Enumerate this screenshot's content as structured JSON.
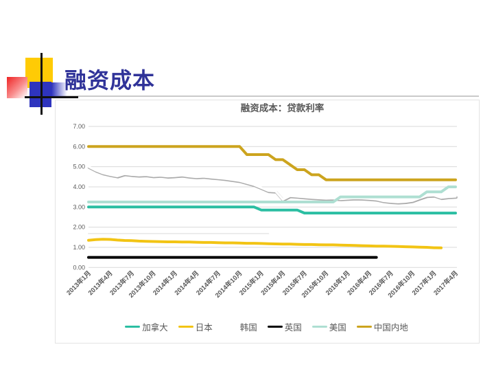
{
  "slide": {
    "title": "融资成本",
    "title_color": "#303399",
    "decoration": {
      "yellow_square": "#ffcb05",
      "blue_square": "#2e34be",
      "red_square_gradient": [
        "#ee2424",
        "#ffffff"
      ],
      "cross_lines": "#111111",
      "header_rule": "#c9c9c9"
    }
  },
  "chart": {
    "title": "融资成本：贷款利率",
    "title_color": "#595959",
    "grid_color": "#d9d9d9",
    "axis_text_color": "#595959",
    "y_tick_labels": [
      "0.00",
      "1.00",
      "2.00",
      "3.00",
      "4.00",
      "5.00",
      "6.00",
      "7.00"
    ],
    "legend": [
      {
        "id": "canada",
        "label": "加拿大",
        "color": "#2bbea2"
      },
      {
        "id": "japan",
        "label": "日本",
        "color": "#f2c414"
      },
      {
        "id": "south-korea",
        "label": "韩国",
        "color": "#ffffff"
      },
      {
        "id": "uk",
        "label": "英国",
        "color": "#000000"
      },
      {
        "id": "usa",
        "label": "美国",
        "color": "#aedfd2"
      },
      {
        "id": "china",
        "label": "中国内地",
        "color": "#cca41e"
      }
    ]
  },
  "chart_data": {
    "type": "line",
    "title": "融资成本：贷款利率",
    "x_description": "monthly points from 2013-01 to 2017-04 (52 points), tick label every 3 months",
    "categories": [
      "2013年1月",
      "2013年4月",
      "2013年7月",
      "2013年10月",
      "2014年1月",
      "2014年4月",
      "2014年7月",
      "2014年10月",
      "2015年1月",
      "2015年4月",
      "2015年7月",
      "2015年10月",
      "2016年1月",
      "2016年4月",
      "2016年7月",
      "2016年10月",
      "2017年1月",
      "2017年4月"
    ],
    "ylim": [
      0,
      7
    ],
    "y_step": 1,
    "grid": true,
    "legend_position": "bottom",
    "series": [
      {
        "id": "unlabeled-faint",
        "label": "",
        "color": "#ececec",
        "width": 2,
        "values": [
          1.68,
          1.68,
          1.68,
          1.68,
          1.68,
          1.68,
          1.68,
          1.68,
          1.68,
          1.68,
          1.68,
          1.68,
          1.68,
          1.68,
          1.68,
          1.68,
          1.68,
          1.68,
          1.68,
          1.68,
          1.68,
          1.68,
          1.68,
          1.68,
          1.68,
          1.68
        ]
      },
      {
        "id": "canada",
        "label": "加拿大",
        "color": "#2bbea2",
        "width": 4,
        "values": [
          3.0,
          3.0,
          3.0,
          3.0,
          3.0,
          3.0,
          3.0,
          3.0,
          3.0,
          3.0,
          3.0,
          3.0,
          3.0,
          3.0,
          3.0,
          3.0,
          3.0,
          3.0,
          3.0,
          3.0,
          3.0,
          3.0,
          3.0,
          3.0,
          2.85,
          2.85,
          2.85,
          2.85,
          2.85,
          2.85,
          2.7,
          2.7,
          2.7,
          2.7,
          2.7,
          2.7,
          2.7,
          2.7,
          2.7,
          2.7,
          2.7,
          2.7,
          2.7,
          2.7,
          2.7,
          2.7,
          2.7,
          2.7,
          2.7,
          2.7,
          2.7,
          2.7
        ]
      },
      {
        "id": "japan",
        "label": "日本",
        "color": "#f2c414",
        "width": 4,
        "values": [
          1.35,
          1.38,
          1.4,
          1.39,
          1.36,
          1.34,
          1.33,
          1.31,
          1.3,
          1.29,
          1.28,
          1.27,
          1.27,
          1.26,
          1.26,
          1.25,
          1.24,
          1.24,
          1.23,
          1.22,
          1.22,
          1.21,
          1.2,
          1.2,
          1.19,
          1.18,
          1.17,
          1.16,
          1.16,
          1.15,
          1.14,
          1.14,
          1.13,
          1.12,
          1.12,
          1.11,
          1.1,
          1.09,
          1.08,
          1.07,
          1.06,
          1.06,
          1.05,
          1.04,
          1.03,
          1.02,
          1.01,
          1.0,
          0.98,
          0.97
        ]
      },
      {
        "id": "south-korea",
        "label": "韩国",
        "color": "#ffffff",
        "width": 3.2,
        "shadow_color": "#ababab",
        "values": [
          5.0,
          4.82,
          4.68,
          4.6,
          4.53,
          4.64,
          4.6,
          4.57,
          4.59,
          4.54,
          4.56,
          4.52,
          4.54,
          4.57,
          4.52,
          4.49,
          4.51,
          4.47,
          4.44,
          4.4,
          4.35,
          4.3,
          4.2,
          4.1,
          3.95,
          3.8,
          3.78,
          3.37,
          3.55,
          3.52,
          3.49,
          3.46,
          3.44,
          3.42,
          3.43,
          3.4,
          3.42,
          3.44,
          3.43,
          3.41,
          3.38,
          3.3,
          3.26,
          3.24,
          3.26,
          3.31,
          3.44,
          3.56,
          3.58,
          3.46,
          3.5,
          3.52
        ]
      },
      {
        "id": "uk",
        "label": "英国",
        "color": "#000000",
        "width": 4,
        "values": [
          0.5,
          0.5,
          0.5,
          0.5,
          0.5,
          0.5,
          0.5,
          0.5,
          0.5,
          0.5,
          0.5,
          0.5,
          0.5,
          0.5,
          0.5,
          0.5,
          0.5,
          0.5,
          0.5,
          0.5,
          0.5,
          0.5,
          0.5,
          0.5,
          0.5,
          0.5,
          0.5,
          0.5,
          0.5,
          0.5,
          0.5,
          0.5,
          0.5,
          0.5,
          0.5,
          0.5,
          0.5,
          0.5,
          0.5,
          0.5,
          0.5
        ]
      },
      {
        "id": "usa",
        "label": "美国",
        "color": "#aedfd2",
        "width": 4,
        "values": [
          3.25,
          3.25,
          3.25,
          3.25,
          3.25,
          3.25,
          3.25,
          3.25,
          3.25,
          3.25,
          3.25,
          3.25,
          3.25,
          3.25,
          3.25,
          3.25,
          3.25,
          3.25,
          3.25,
          3.25,
          3.25,
          3.25,
          3.25,
          3.25,
          3.25,
          3.25,
          3.25,
          3.25,
          3.25,
          3.25,
          3.25,
          3.25,
          3.25,
          3.25,
          3.25,
          3.5,
          3.5,
          3.5,
          3.5,
          3.5,
          3.5,
          3.5,
          3.5,
          3.5,
          3.5,
          3.5,
          3.5,
          3.75,
          3.75,
          3.75,
          4.0,
          4.0
        ]
      },
      {
        "id": "china",
        "label": "中国内地",
        "color": "#cca41e",
        "width": 4,
        "values": [
          6.0,
          6.0,
          6.0,
          6.0,
          6.0,
          6.0,
          6.0,
          6.0,
          6.0,
          6.0,
          6.0,
          6.0,
          6.0,
          6.0,
          6.0,
          6.0,
          6.0,
          6.0,
          6.0,
          6.0,
          6.0,
          6.0,
          5.6,
          5.6,
          5.6,
          5.6,
          5.35,
          5.35,
          5.1,
          4.85,
          4.85,
          4.6,
          4.6,
          4.35,
          4.35,
          4.35,
          4.35,
          4.35,
          4.35,
          4.35,
          4.35,
          4.35,
          4.35,
          4.35,
          4.35,
          4.35,
          4.35,
          4.35,
          4.35,
          4.35,
          4.35,
          4.35
        ]
      }
    ]
  }
}
